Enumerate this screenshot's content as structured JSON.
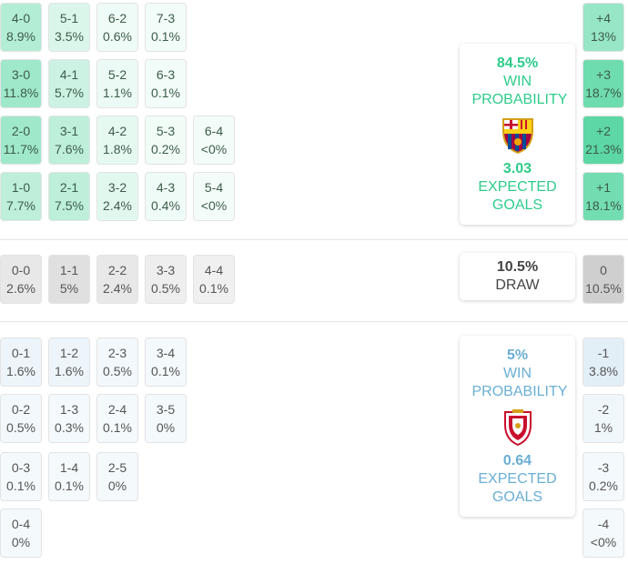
{
  "home": {
    "win_pct": "84.5%",
    "win_label": "WIN PROBABILITY",
    "xg": "3.03",
    "xg_label": "EXPECTED GOALS",
    "color": "#2ecc8a",
    "crest_icon": "fc-barcelona-crest-icon",
    "scores": [
      [
        "4-0",
        "8.9%"
      ],
      [
        "5-1",
        "3.5%"
      ],
      [
        "6-2",
        "0.6%"
      ],
      [
        "7-3",
        "0.1%"
      ],
      [
        "3-0",
        "11.8%"
      ],
      [
        "4-1",
        "5.7%"
      ],
      [
        "5-2",
        "1.1%"
      ],
      [
        "6-3",
        "0.1%"
      ],
      [
        "2-0",
        "11.7%"
      ],
      [
        "3-1",
        "7.6%"
      ],
      [
        "4-2",
        "1.8%"
      ],
      [
        "5-3",
        "0.2%"
      ],
      [
        "6-4",
        "<0%"
      ],
      [
        "1-0",
        "7.7%"
      ],
      [
        "2-1",
        "7.5%"
      ],
      [
        "3-2",
        "2.4%"
      ],
      [
        "4-3",
        "0.4%"
      ],
      [
        "5-4",
        "<0%"
      ]
    ],
    "margins": [
      [
        "+4",
        "13%"
      ],
      [
        "+3",
        "18.7%"
      ],
      [
        "+2",
        "21.3%"
      ],
      [
        "+1",
        "18.1%"
      ]
    ]
  },
  "draw": {
    "pct": "10.5%",
    "label": "DRAW",
    "scores": [
      [
        "0-0",
        "2.6%"
      ],
      [
        "1-1",
        "5%"
      ],
      [
        "2-2",
        "2.4%"
      ],
      [
        "3-3",
        "0.5%"
      ],
      [
        "4-4",
        "0.1%"
      ]
    ],
    "margin": [
      "0",
      "10.5%"
    ]
  },
  "away": {
    "win_pct": "5%",
    "win_label": "WIN PROBABILITY",
    "xg": "0.64",
    "xg_label": "EXPECTED GOALS",
    "color": "#6aaed4",
    "crest_icon": "ca-osasuna-crest-icon",
    "scores": [
      [
        "0-1",
        "1.6%"
      ],
      [
        "1-2",
        "1.6%"
      ],
      [
        "2-3",
        "0.5%"
      ],
      [
        "3-4",
        "0.1%"
      ],
      [
        "0-2",
        "0.5%"
      ],
      [
        "1-3",
        "0.3%"
      ],
      [
        "2-4",
        "0.1%"
      ],
      [
        "3-5",
        "0%"
      ],
      [
        "0-3",
        "0.1%"
      ],
      [
        "1-4",
        "0.1%"
      ],
      [
        "2-5",
        "0%"
      ],
      [
        "0-4",
        "0%"
      ]
    ],
    "margins": [
      [
        "-1",
        "3.8%"
      ],
      [
        "-2",
        "1%"
      ],
      [
        "-3",
        "0.2%"
      ],
      [
        "-4",
        "<0%"
      ]
    ]
  }
}
